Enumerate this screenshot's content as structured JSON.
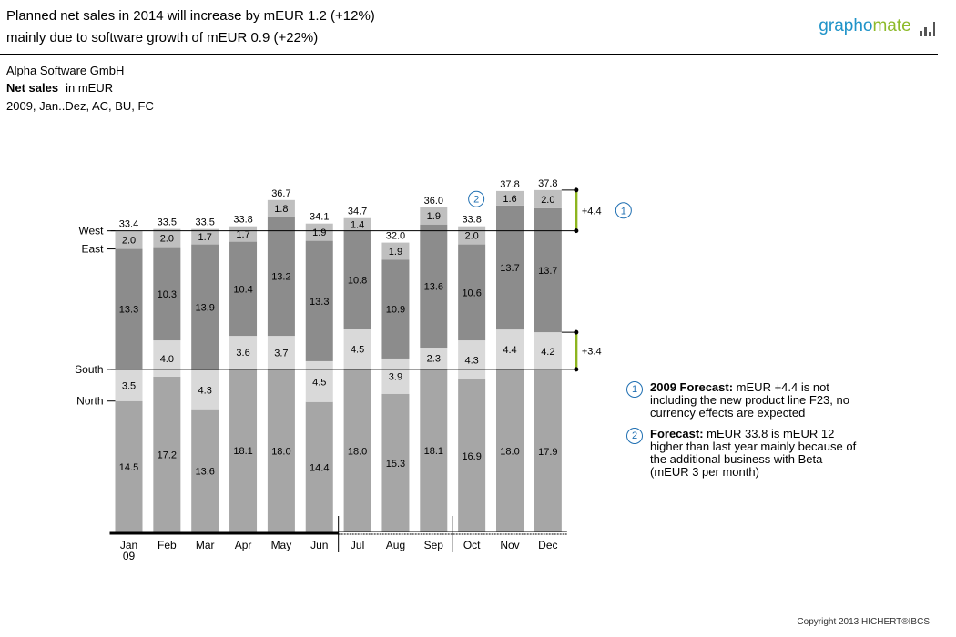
{
  "header": {
    "title_line1": "Planned net sales in 2014 will increase by mEUR 1.2 (+12%)",
    "title_line2": "mainly due to software growth of mEUR 0.9 (+22%)",
    "logo_part1": "grapho",
    "logo_part2": "mate"
  },
  "meta": {
    "company": "Alpha Software GmbH",
    "measure": "Net sales",
    "unit": "in mEUR",
    "scenario": "2009, Jan..Dez, AC, BU, FC"
  },
  "chart_data": {
    "type": "bar",
    "stacked": true,
    "categories": [
      "Jan\n09",
      "Feb",
      "Mar",
      "Apr",
      "May",
      "Jun",
      "Jul",
      "Aug",
      "Sep",
      "Oct",
      "Nov",
      "Dec"
    ],
    "series": [
      {
        "name": "North",
        "values": [
          14.5,
          17.2,
          13.6,
          18.1,
          18.0,
          14.4,
          18.0,
          15.3,
          18.1,
          16.9,
          18.0,
          17.9
        ],
        "color": "#a6a6a6"
      },
      {
        "name": "South",
        "values": [
          3.5,
          4.0,
          4.3,
          3.6,
          3.7,
          4.5,
          4.5,
          3.9,
          2.3,
          4.3,
          4.4,
          4.2
        ],
        "color": "#d9d9d9"
      },
      {
        "name": "East",
        "values": [
          13.3,
          10.3,
          13.9,
          10.4,
          13.2,
          13.3,
          10.8,
          10.9,
          13.6,
          10.6,
          13.7,
          13.7
        ],
        "color": "#8c8c8c"
      },
      {
        "name": "West",
        "values": [
          2.0,
          2.0,
          1.7,
          1.7,
          1.8,
          1.9,
          1.4,
          1.9,
          1.9,
          2.0,
          1.6,
          2.0
        ],
        "color": "#bfbfbf"
      }
    ],
    "totals": [
      "33.4",
      "33.5",
      "33.5",
      "33.8",
      "36.7",
      "34.1",
      "34.7",
      "32.0",
      "36.0",
      "33.8",
      "37.8",
      "37.8"
    ],
    "ylim": [
      0,
      40
    ],
    "actual_months": 6,
    "differences": [
      {
        "series": "West",
        "label": "+4.4",
        "note": "1"
      },
      {
        "series": "South",
        "label": "+3.4"
      }
    ],
    "marker": {
      "category": "Oct",
      "note": "2"
    }
  },
  "notes": [
    {
      "num": "1",
      "title": "2009 Forecast:",
      "text": " mEUR +4.4 is not including the new product line F23, no currency effects are expected"
    },
    {
      "num": "2",
      "title": "Forecast:",
      "text": " mEUR 33.8 is mEUR 12 higher than last year mainly because of the additional business with Beta (mEUR 3 per month)"
    }
  ],
  "copyright": "Copyright 2013 HICHERT®IBCS"
}
